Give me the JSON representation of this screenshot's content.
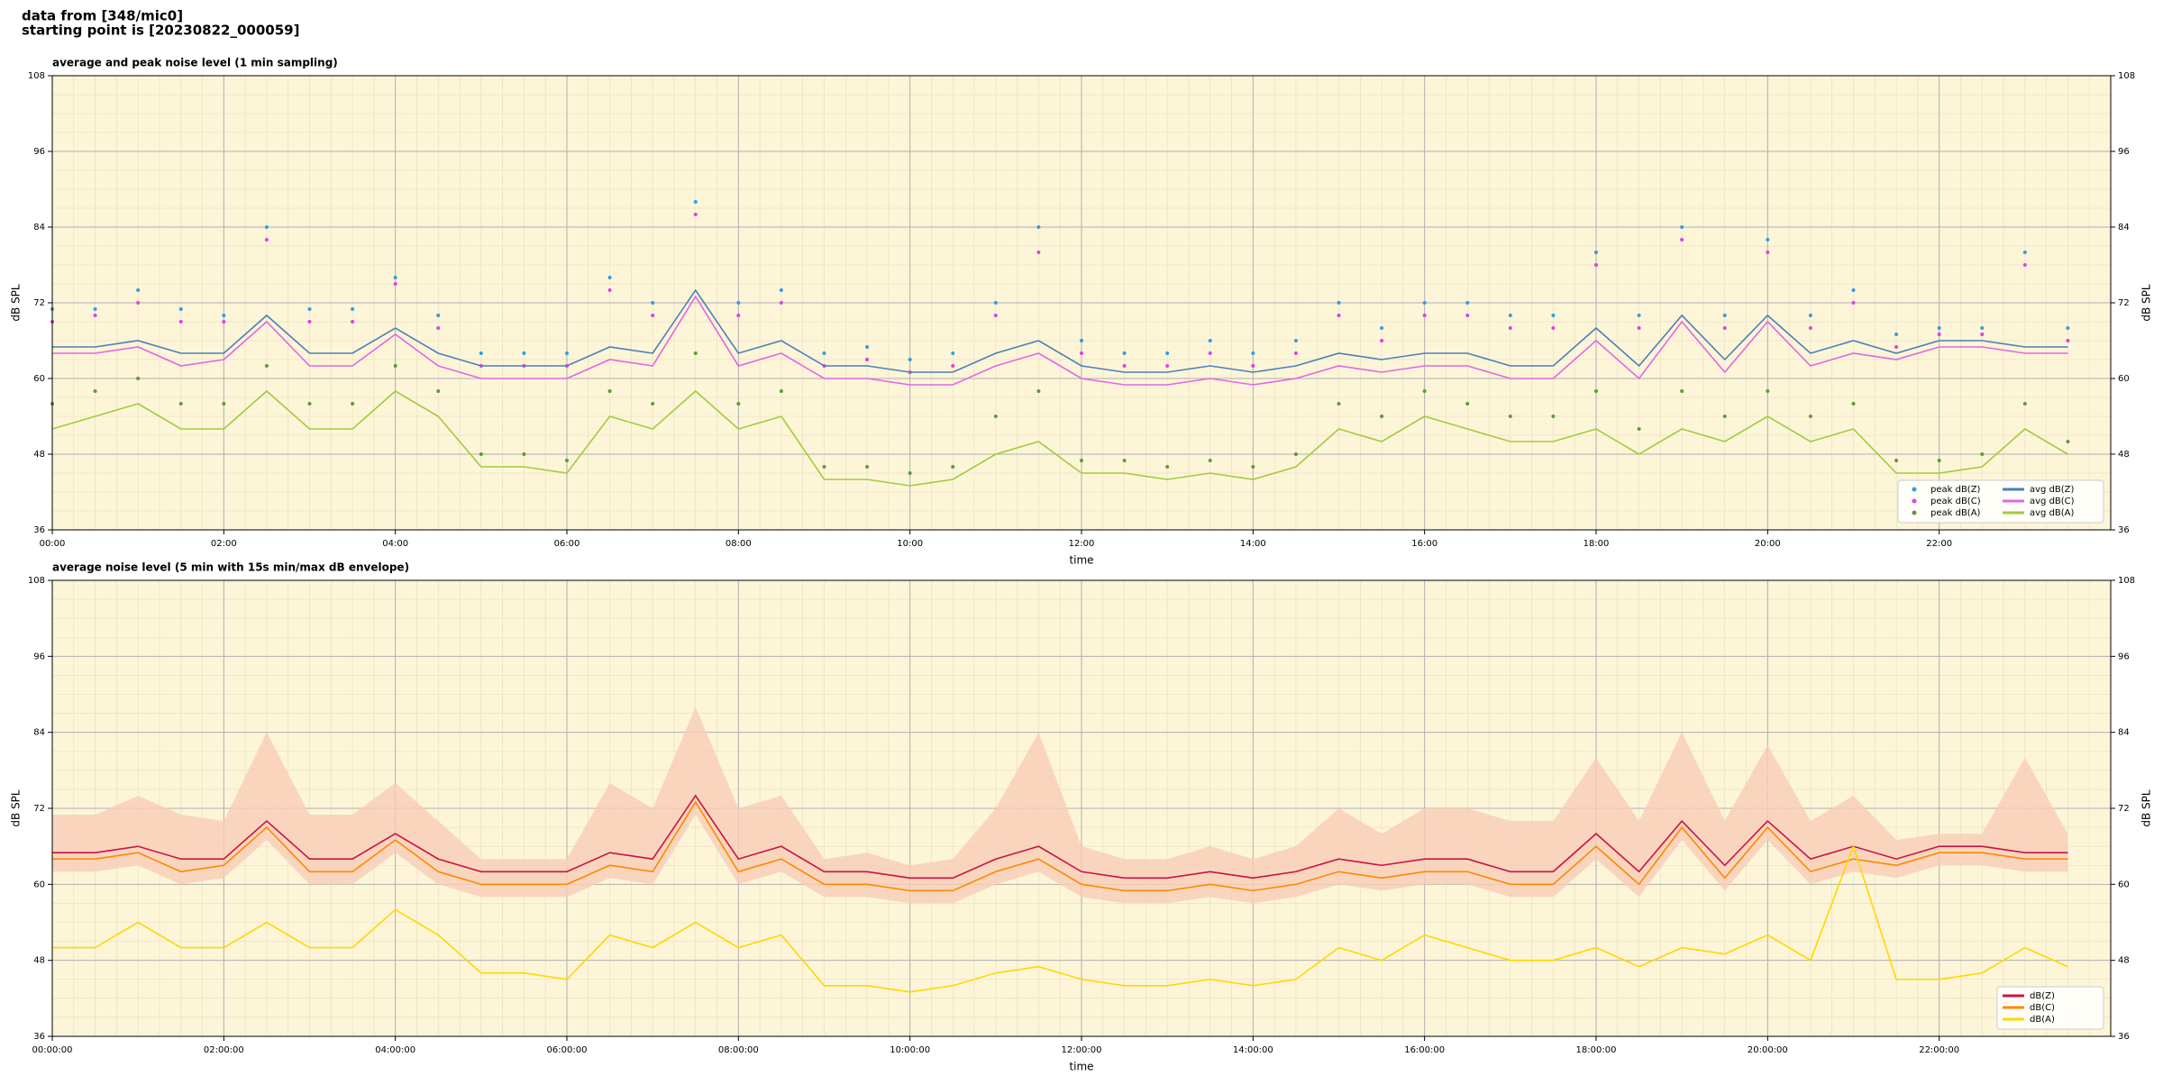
{
  "header": {
    "line1": "data from [348/mic0]",
    "line2": "starting point is [20230822_000059]"
  },
  "chart_data": [
    {
      "type": "line",
      "title": "average and peak noise level (1 min sampling)",
      "xlabel": "time",
      "ylabel": "dB SPL",
      "x": [
        "00:00",
        "00:30",
        "01:00",
        "01:30",
        "02:00",
        "02:30",
        "03:00",
        "03:30",
        "04:00",
        "04:30",
        "05:00",
        "05:30",
        "06:00",
        "06:30",
        "07:00",
        "07:30",
        "08:00",
        "08:30",
        "09:00",
        "09:30",
        "10:00",
        "10:30",
        "11:00",
        "11:30",
        "12:00",
        "12:30",
        "13:00",
        "13:30",
        "14:00",
        "14:30",
        "15:00",
        "15:30",
        "16:00",
        "16:30",
        "17:00",
        "17:30",
        "18:00",
        "18:30",
        "19:00",
        "19:30",
        "20:00",
        "20:30",
        "21:00",
        "21:30",
        "22:00",
        "22:30",
        "23:00",
        "23:30"
      ],
      "xlim": [
        "00:00",
        "24:00"
      ],
      "xticks": [
        "00:00",
        "02:00",
        "04:00",
        "06:00",
        "08:00",
        "10:00",
        "12:00",
        "14:00",
        "16:00",
        "18:00",
        "20:00",
        "22:00"
      ],
      "ylim": [
        36,
        108
      ],
      "yticks": [
        36,
        48,
        60,
        72,
        84,
        96,
        108
      ],
      "grid": true,
      "legend": "lower right",
      "legend_columns": 2,
      "background": "#fdf5d8",
      "series": [
        {
          "name": "peak dB(Z)",
          "mode": "markers",
          "color": "#2f9fe0",
          "values": [
            71,
            71,
            74,
            71,
            70,
            84,
            71,
            71,
            76,
            70,
            64,
            64,
            64,
            76,
            72,
            88,
            72,
            74,
            64,
            65,
            63,
            64,
            72,
            84,
            66,
            64,
            64,
            66,
            64,
            66,
            72,
            68,
            72,
            72,
            70,
            70,
            80,
            70,
            84,
            70,
            82,
            70,
            74,
            67,
            68,
            68,
            80,
            68
          ]
        },
        {
          "name": "peak dB(C)",
          "mode": "markers",
          "color": "#e040e0",
          "values": [
            69,
            70,
            72,
            69,
            69,
            82,
            69,
            69,
            75,
            68,
            62,
            62,
            62,
            74,
            70,
            86,
            70,
            72,
            62,
            63,
            61,
            62,
            70,
            80,
            64,
            62,
            62,
            64,
            62,
            64,
            70,
            66,
            70,
            70,
            68,
            68,
            78,
            68,
            82,
            68,
            80,
            68,
            72,
            65,
            67,
            67,
            78,
            66
          ]
        },
        {
          "name": "peak dB(A)",
          "mode": "markers",
          "color": "#5f9a3a",
          "values": [
            56,
            58,
            60,
            56,
            56,
            62,
            56,
            56,
            62,
            58,
            48,
            48,
            47,
            58,
            56,
            64,
            56,
            58,
            46,
            46,
            45,
            46,
            54,
            58,
            47,
            47,
            46,
            47,
            46,
            48,
            56,
            54,
            58,
            56,
            54,
            54,
            58,
            52,
            58,
            54,
            58,
            54,
            56,
            47,
            47,
            48,
            56,
            50
          ]
        },
        {
          "name": "avg dB(Z)",
          "mode": "line",
          "color": "#4a80b8",
          "values": [
            65,
            65,
            66,
            64,
            64,
            70,
            64,
            64,
            68,
            64,
            62,
            62,
            62,
            65,
            64,
            74,
            64,
            66,
            62,
            62,
            61,
            61,
            64,
            66,
            62,
            61,
            61,
            62,
            61,
            62,
            64,
            63,
            64,
            64,
            62,
            62,
            68,
            62,
            70,
            63,
            70,
            64,
            66,
            64,
            66,
            66,
            65,
            65
          ]
        },
        {
          "name": "avg dB(C)",
          "mode": "line",
          "color": "#e266e2",
          "values": [
            64,
            64,
            65,
            62,
            63,
            69,
            62,
            62,
            67,
            62,
            60,
            60,
            60,
            63,
            62,
            73,
            62,
            64,
            60,
            60,
            59,
            59,
            62,
            64,
            60,
            59,
            59,
            60,
            59,
            60,
            62,
            61,
            62,
            62,
            60,
            60,
            66,
            60,
            69,
            61,
            69,
            62,
            64,
            63,
            65,
            65,
            64,
            64
          ]
        },
        {
          "name": "avg dB(A)",
          "mode": "line",
          "color": "#a0cc3c",
          "values": [
            52,
            54,
            56,
            52,
            52,
            58,
            52,
            52,
            58,
            54,
            46,
            46,
            45,
            54,
            52,
            58,
            52,
            54,
            44,
            44,
            43,
            44,
            48,
            50,
            45,
            45,
            44,
            45,
            44,
            46,
            52,
            50,
            54,
            52,
            50,
            50,
            52,
            48,
            52,
            50,
            54,
            50,
            52,
            45,
            45,
            46,
            52,
            48
          ]
        }
      ]
    },
    {
      "type": "line",
      "title": "average noise level (5 min with 15s min/max dB envelope)",
      "xlabel": "time",
      "ylabel": "dB SPL",
      "x": [
        "00:00:00",
        "00:30:00",
        "01:00:00",
        "01:30:00",
        "02:00:00",
        "02:30:00",
        "03:00:00",
        "03:30:00",
        "04:00:00",
        "04:30:00",
        "05:00:00",
        "05:30:00",
        "06:00:00",
        "06:30:00",
        "07:00:00",
        "07:30:00",
        "08:00:00",
        "08:30:00",
        "09:00:00",
        "09:30:00",
        "10:00:00",
        "10:30:00",
        "11:00:00",
        "11:30:00",
        "12:00:00",
        "12:30:00",
        "13:00:00",
        "13:30:00",
        "14:00:00",
        "14:30:00",
        "15:00:00",
        "15:30:00",
        "16:00:00",
        "16:30:00",
        "17:00:00",
        "17:30:00",
        "18:00:00",
        "18:30:00",
        "19:00:00",
        "19:30:00",
        "20:00:00",
        "20:30:00",
        "21:00:00",
        "21:30:00",
        "22:00:00",
        "22:30:00",
        "23:00:00",
        "23:30:00"
      ],
      "xlim": [
        "00:00:00",
        "24:00:00"
      ],
      "xticks": [
        "00:00:00",
        "02:00:00",
        "04:00:00",
        "06:00:00",
        "08:00:00",
        "10:00:00",
        "12:00:00",
        "14:00:00",
        "16:00:00",
        "18:00:00",
        "20:00:00",
        "22:00:00"
      ],
      "ylim": [
        36,
        108
      ],
      "yticks": [
        36,
        48,
        60,
        72,
        84,
        96,
        108
      ],
      "grid": true,
      "legend": "lower right",
      "legend_columns": 1,
      "background": "#fdf5d8",
      "envelope": {
        "color": "#f8cdb8",
        "upper": [
          71,
          71,
          74,
          71,
          70,
          84,
          71,
          71,
          76,
          70,
          64,
          64,
          64,
          76,
          72,
          88,
          72,
          74,
          64,
          65,
          63,
          64,
          72,
          84,
          66,
          64,
          64,
          66,
          64,
          66,
          72,
          68,
          72,
          72,
          70,
          70,
          80,
          70,
          84,
          70,
          82,
          70,
          74,
          67,
          68,
          68,
          80,
          68
        ],
        "lower": [
          62,
          62,
          63,
          60,
          61,
          67,
          60,
          60,
          65,
          60,
          58,
          58,
          58,
          61,
          60,
          71,
          60,
          62,
          58,
          58,
          57,
          57,
          60,
          62,
          58,
          57,
          57,
          58,
          57,
          58,
          60,
          59,
          60,
          60,
          58,
          58,
          64,
          58,
          67,
          59,
          67,
          60,
          62,
          61,
          63,
          63,
          62,
          62
        ]
      },
      "series": [
        {
          "name": "dB(Z)",
          "mode": "line",
          "color": "#cc1144",
          "values": [
            65,
            65,
            66,
            64,
            64,
            70,
            64,
            64,
            68,
            64,
            62,
            62,
            62,
            65,
            64,
            74,
            64,
            66,
            62,
            62,
            61,
            61,
            64,
            66,
            62,
            61,
            61,
            62,
            61,
            62,
            64,
            63,
            64,
            64,
            62,
            62,
            68,
            62,
            70,
            63,
            70,
            64,
            66,
            64,
            66,
            66,
            65,
            65
          ]
        },
        {
          "name": "dB(C)",
          "mode": "line",
          "color": "#ff8800",
          "values": [
            64,
            64,
            65,
            62,
            63,
            69,
            62,
            62,
            67,
            62,
            60,
            60,
            60,
            63,
            62,
            73,
            62,
            64,
            60,
            60,
            59,
            59,
            62,
            64,
            60,
            59,
            59,
            60,
            59,
            60,
            62,
            61,
            62,
            62,
            60,
            60,
            66,
            60,
            69,
            61,
            69,
            62,
            64,
            63,
            65,
            65,
            64,
            64
          ]
        },
        {
          "name": "dB(A)",
          "mode": "line",
          "color": "#ffd700",
          "values": [
            50,
            50,
            54,
            50,
            50,
            54,
            50,
            50,
            56,
            52,
            46,
            46,
            45,
            52,
            50,
            54,
            50,
            52,
            44,
            44,
            43,
            44,
            46,
            47,
            45,
            44,
            44,
            45,
            44,
            45,
            50,
            48,
            52,
            50,
            48,
            48,
            50,
            47,
            50,
            49,
            52,
            48,
            66,
            45,
            45,
            46,
            50,
            47
          ]
        }
      ]
    }
  ]
}
